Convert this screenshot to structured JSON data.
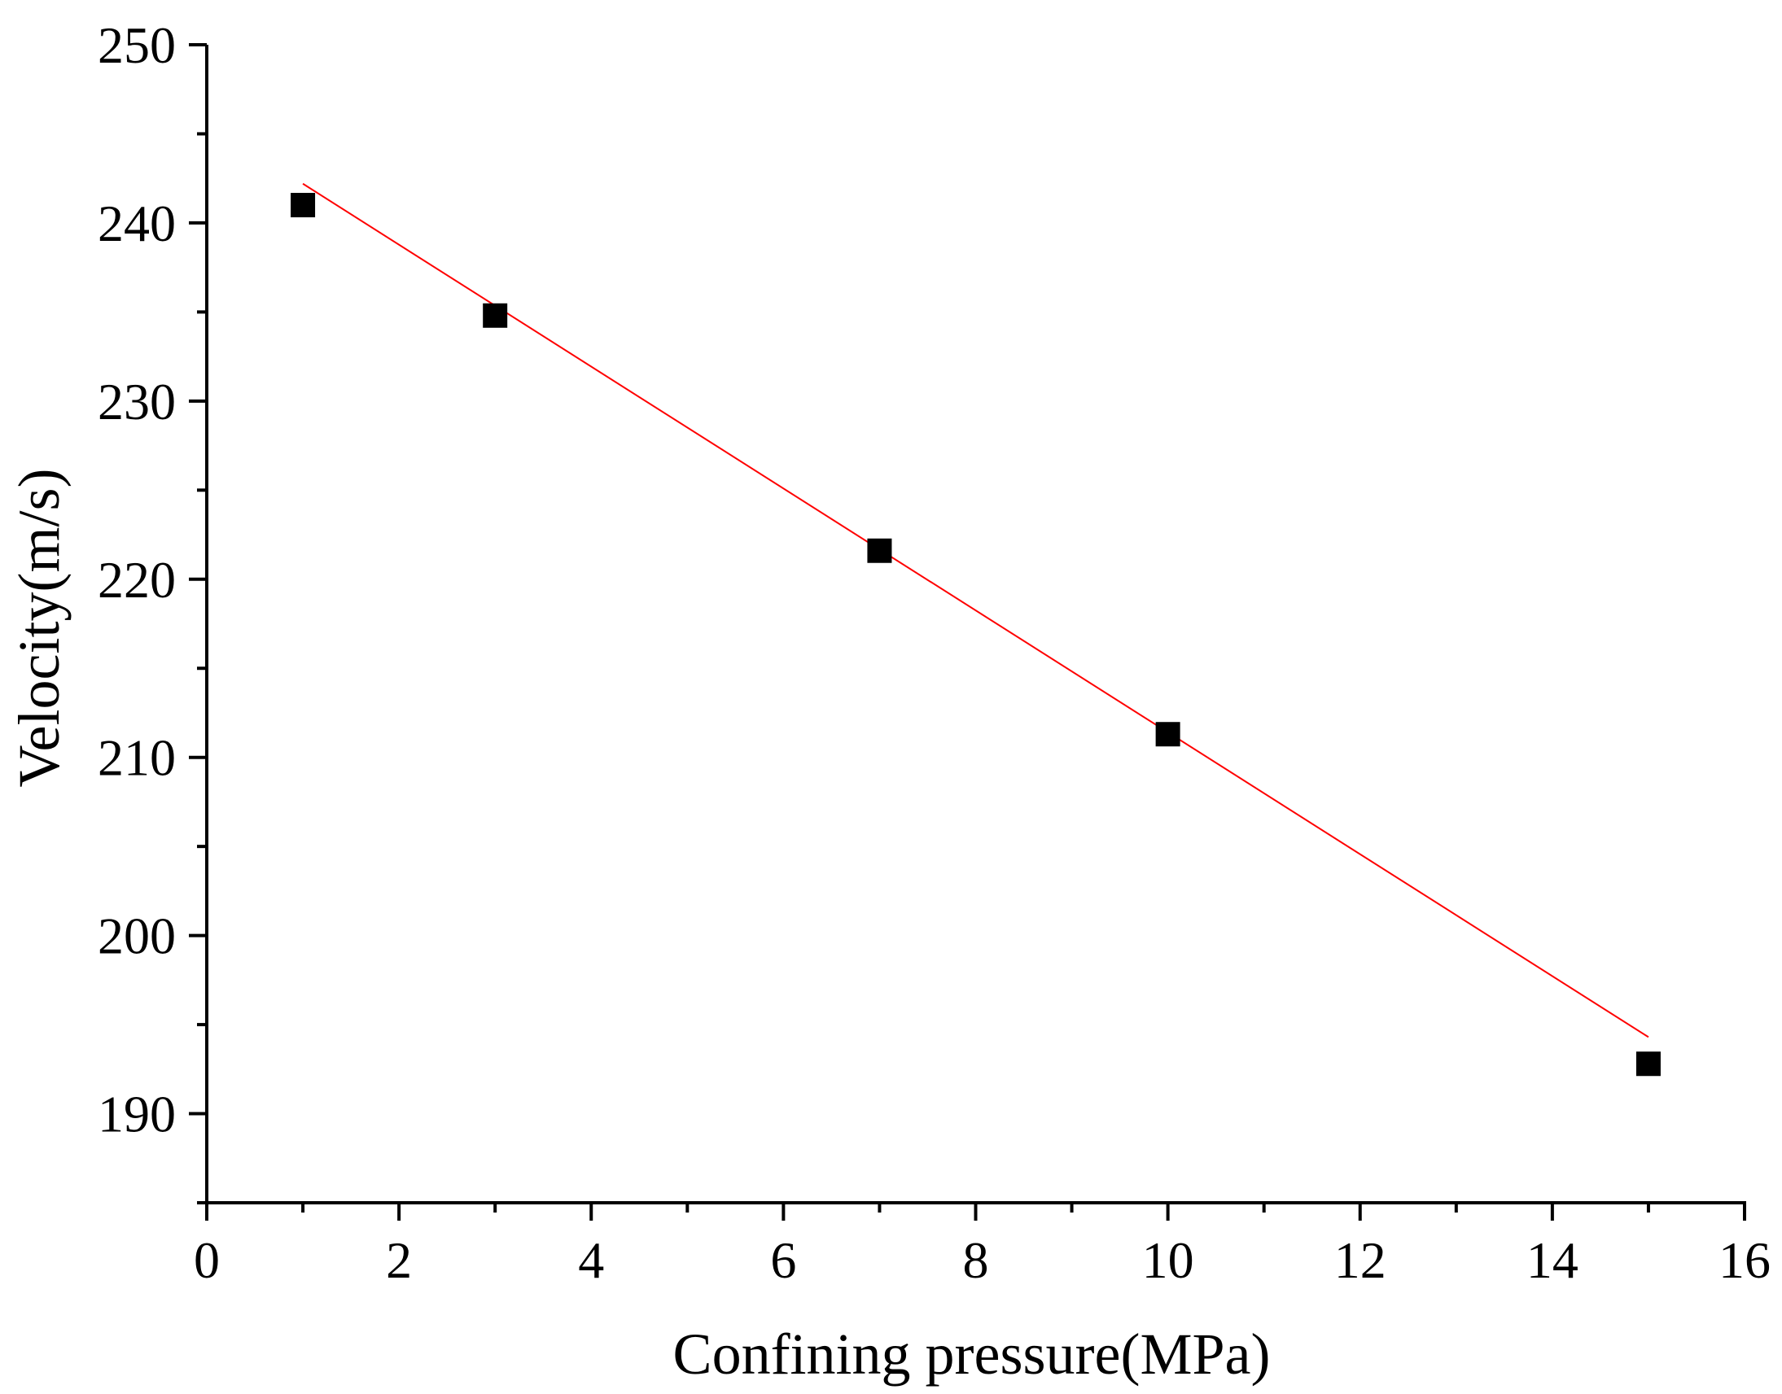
{
  "chart_data": {
    "type": "scatter",
    "title": "",
    "xlabel": "Confining pressure(MPa)",
    "ylabel": "Velocity(m/s)",
    "xlim": [
      0,
      16
    ],
    "ylim": [
      185,
      250
    ],
    "x_ticks": [
      "0",
      "2",
      "4",
      "6",
      "8",
      "10",
      "12",
      "14",
      "16"
    ],
    "y_ticks": [
      "190",
      "200",
      "210",
      "220",
      "230",
      "240",
      "250"
    ],
    "x_tick_values": [
      0,
      2,
      4,
      6,
      8,
      10,
      12,
      14,
      16
    ],
    "y_tick_values": [
      190,
      200,
      210,
      220,
      230,
      240,
      250
    ],
    "x_minor_step": 1,
    "y_minor_step": 5,
    "grid": false,
    "series": [
      {
        "marker": "square",
        "color": "#000000",
        "x": [
          1,
          3,
          7,
          10,
          15
        ],
        "y": [
          241.0,
          234.8,
          221.6,
          211.3,
          192.8
        ]
      }
    ],
    "fit_line": {
      "color": "#ff0000",
      "x": [
        1,
        15
      ],
      "y": [
        242.2,
        194.3
      ]
    }
  }
}
